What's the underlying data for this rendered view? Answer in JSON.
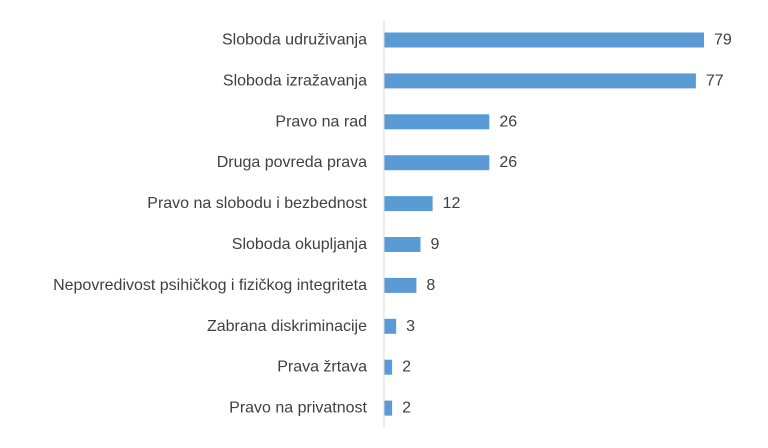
{
  "chart_data": {
    "type": "bar",
    "orientation": "horizontal",
    "title": "",
    "xlabel": "",
    "ylabel": "",
    "categories": [
      "Sloboda udruživanja",
      "Sloboda izražavanja",
      "Pravo na rad",
      "Druga povreda prava",
      "Pravo na slobodu i bezbednost",
      "Sloboda okupljanja",
      "Nepovredivost psihičkog i fizičkog integriteta",
      "Zabrana diskriminacije",
      "Prava žrtava",
      "Pravo na privatnost"
    ],
    "values": [
      79,
      77,
      26,
      26,
      12,
      9,
      8,
      3,
      2,
      2
    ],
    "xlim": [
      0,
      79
    ],
    "grid": false,
    "legend": "none",
    "data_labels": true,
    "colors": {
      "bar": "#5b9bd5",
      "axis": "#d9d9d9",
      "text": "#404040"
    }
  }
}
